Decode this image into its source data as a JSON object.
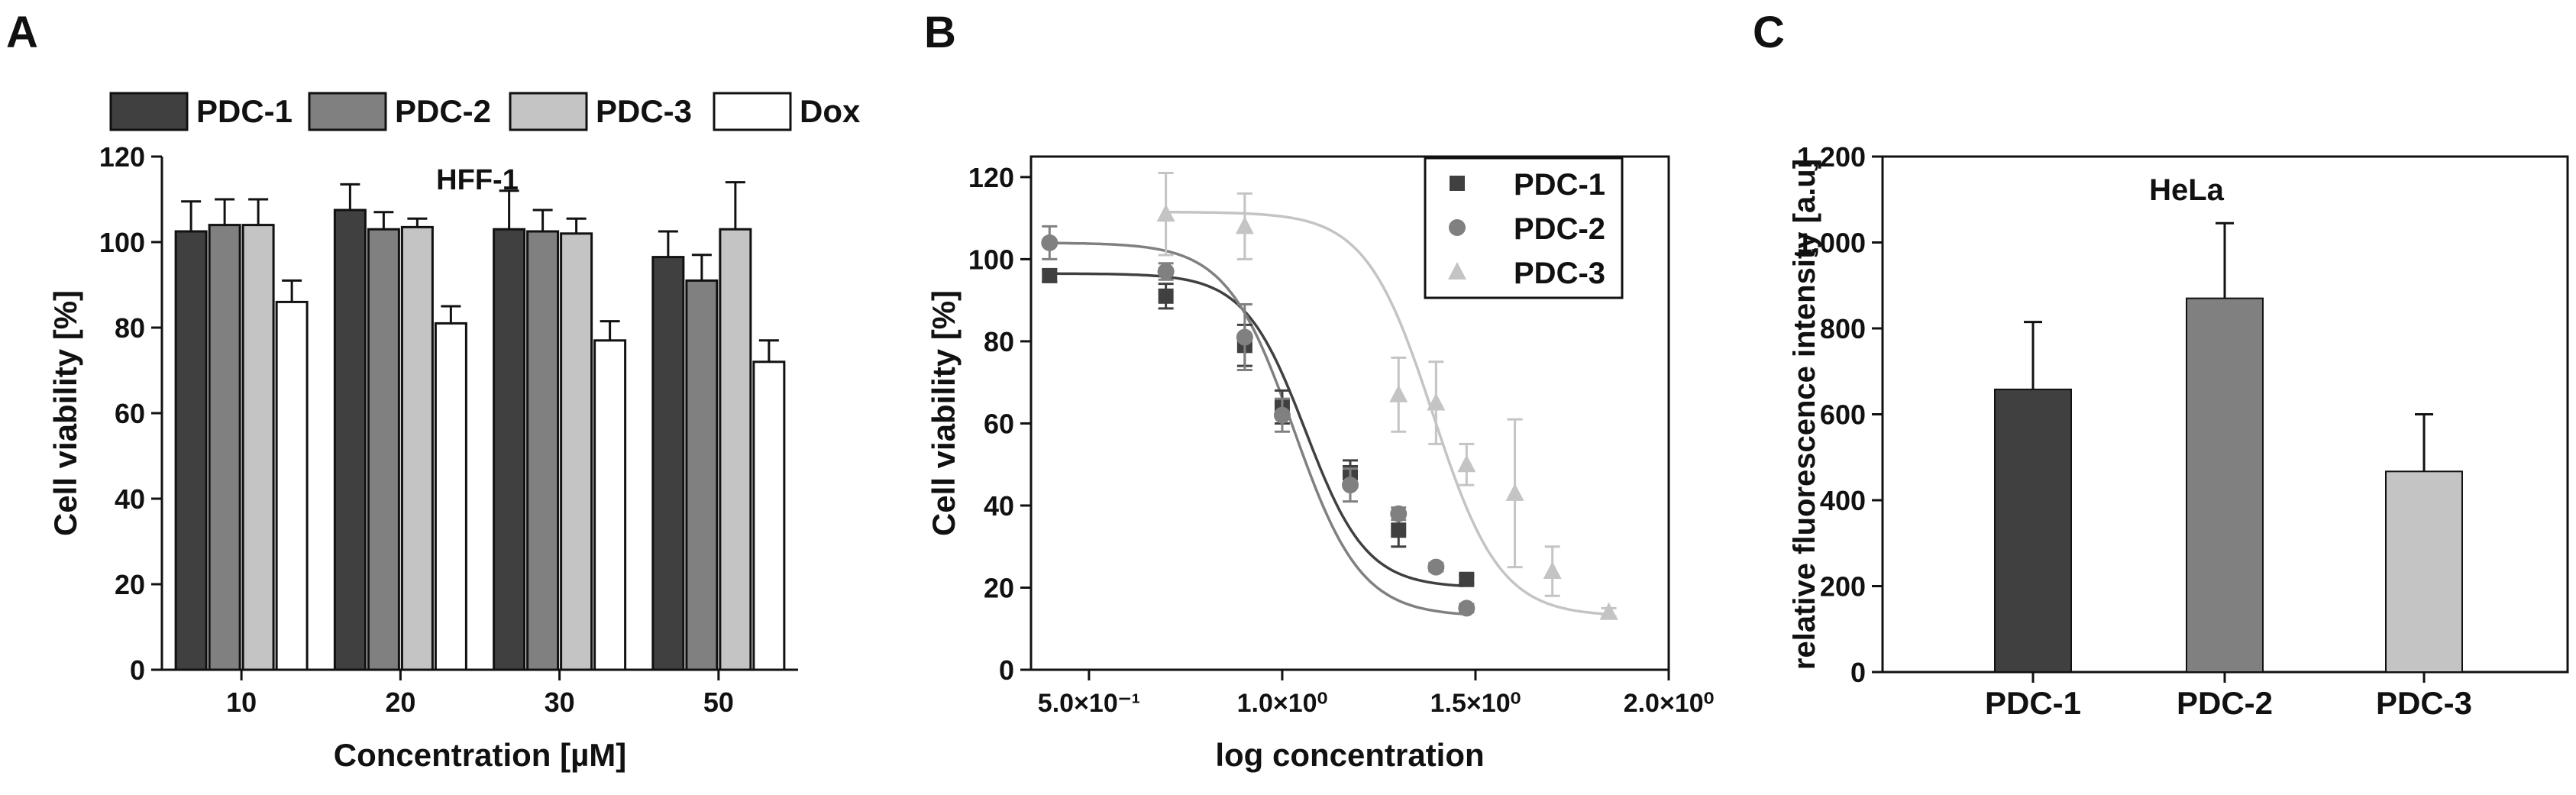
{
  "panels": [
    {
      "letter": "A"
    },
    {
      "letter": "B"
    },
    {
      "letter": "C"
    }
  ],
  "colors": {
    "pdc1": "#404040",
    "pdc2": "#808080",
    "pdc3": "#c4c4c4",
    "dox": "#ffffff"
  },
  "chart_data": [
    {
      "type": "bar",
      "panel": "A",
      "title": "HFF-1",
      "xlabel": "Concentration [µM]",
      "ylabel": "Cell viability [%]",
      "ylim": [
        0,
        120
      ],
      "yticks": [
        0,
        20,
        40,
        60,
        80,
        100,
        120
      ],
      "categories": [
        "10",
        "20",
        "30",
        "50"
      ],
      "legend_position": "top",
      "series": [
        {
          "name": "PDC-1",
          "color": "#404040",
          "values": [
            102.5,
            107.5,
            103,
            96.5
          ],
          "errors": [
            7,
            6,
            9,
            6
          ]
        },
        {
          "name": "PDC-2",
          "color": "#808080",
          "values": [
            104,
            103,
            102.5,
            91
          ],
          "errors": [
            6,
            4,
            5,
            6
          ]
        },
        {
          "name": "PDC-3",
          "color": "#c4c4c4",
          "values": [
            104,
            103.5,
            102,
            103
          ],
          "errors": [
            6,
            2,
            3.5,
            11
          ]
        },
        {
          "name": "Dox",
          "color": "#ffffff",
          "values": [
            86,
            81,
            77,
            72
          ],
          "errors": [
            5,
            4,
            4.5,
            5
          ]
        }
      ]
    },
    {
      "type": "scatter",
      "panel": "B",
      "xlabel": "log concentration",
      "ylabel": "Cell viability [%]",
      "xlim": [
        0.35,
        2.0
      ],
      "ylim": [
        0,
        125
      ],
      "xticks": [
        0.5,
        1.0,
        1.5,
        2.0
      ],
      "xtick_labels": [
        "5.0×10⁻¹",
        "1.0×10⁰",
        "1.5×10⁰",
        "2.0×10⁰"
      ],
      "yticks": [
        0,
        20,
        40,
        60,
        80,
        100,
        120
      ],
      "legend_position": "top-right",
      "series": [
        {
          "name": "PDC-1",
          "marker": "square",
          "color": "#404040",
          "x": [
            0.398,
            0.699,
            0.903,
            1.0,
            1.176,
            1.301,
            1.477
          ],
          "y": [
            96,
            91,
            79,
            64,
            48,
            34,
            22
          ],
          "errors": [
            1.5,
            3,
            5,
            4,
            3,
            4,
            1
          ],
          "fit": {
            "top": 96.5,
            "bottom": 20,
            "logec50": 1.06,
            "hill": 5.5
          }
        },
        {
          "name": "PDC-2",
          "marker": "circle",
          "color": "#808080",
          "x": [
            0.398,
            0.699,
            0.903,
            1.0,
            1.176,
            1.301,
            1.398,
            1.477
          ],
          "y": [
            104,
            97,
            81,
            62,
            45,
            38,
            25,
            15
          ],
          "errors": [
            4,
            2,
            8,
            4,
            4,
            1.5,
            1,
            1
          ],
          "fit": {
            "top": 104,
            "bottom": 13,
            "logec50": 1.03,
            "hill": 5.0
          }
        },
        {
          "name": "PDC-3",
          "marker": "triangle",
          "color": "#c4c4c4",
          "x": [
            0.699,
            0.903,
            1.301,
            1.398,
            1.477,
            1.602,
            1.699,
            1.845
          ],
          "y": [
            111,
            108,
            67,
            65,
            50,
            43,
            24,
            14
          ],
          "errors": [
            10,
            8,
            9,
            10,
            5,
            18,
            6,
            1
          ],
          "fit": {
            "top": 111.5,
            "bottom": 13,
            "logec50": 1.39,
            "hill": 5.0
          }
        }
      ]
    },
    {
      "type": "bar",
      "panel": "C",
      "title": "HeLa",
      "ylabel": "relative fluorescence intensity [a.u]",
      "ylim": [
        0,
        1200
      ],
      "yticks": [
        0,
        200,
        400,
        600,
        800,
        1000,
        1200
      ],
      "ytick_labels": [
        "0",
        "200",
        "400",
        "600",
        "800",
        "1,000",
        "1,200"
      ],
      "categories": [
        "PDC-1",
        "PDC-2",
        "PDC-3"
      ],
      "colors": [
        "#404040",
        "#808080",
        "#c4c4c4"
      ],
      "values": [
        658,
        870,
        467
      ],
      "errors": [
        157,
        175,
        133
      ]
    }
  ]
}
